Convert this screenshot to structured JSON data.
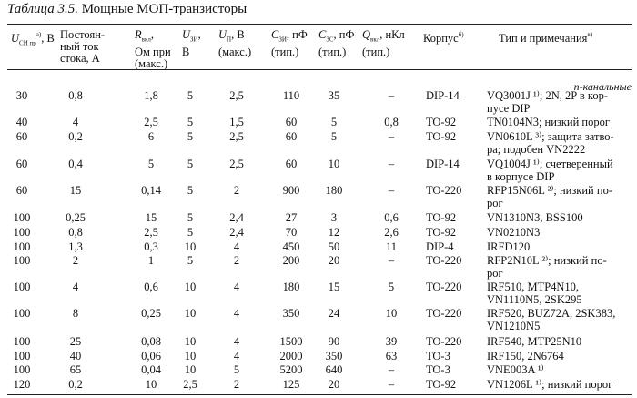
{
  "title": {
    "label": "Таблица 3.5.",
    "text": "Мощные МОП-транзисторы"
  },
  "headers": {
    "vds": {
      "sym": "U",
      "sub": "СИ пр",
      "sup": "а)",
      "unit": ", В"
    },
    "id": "Постоян-\nный ток\nстока, А",
    "ron": {
      "sym": "R",
      "sub": "вкл",
      "unit": ",",
      "rest": "Ом при\n(макс.)"
    },
    "vgs_on": {
      "sym": "U",
      "sub": "ЗИ",
      "unit": ",",
      "rest": "В"
    },
    "vth": {
      "sym": "U",
      "sub": "П",
      "unit": ", В",
      "rest": "(макс.)"
    },
    "ciss": {
      "sym": "C",
      "sub": "ЗИ",
      "unit": ", пФ",
      "rest": "(тип.)"
    },
    "crss": {
      "sym": "C",
      "sub": "ЗС",
      "unit": ", пФ",
      "rest": "(тип.)"
    },
    "qg": {
      "sym": "Q",
      "sub": "вкл",
      "unit": ", нКл",
      "rest": "(тип.)"
    },
    "pkg": {
      "text": "Корпус",
      "sup": "б)"
    },
    "type": {
      "text": "Тип и примечания",
      "sup": "в)"
    }
  },
  "section": "n-канальные",
  "rows": [
    {
      "vds": "30",
      "id": "0,8",
      "ron": "1,8",
      "vgs": "5",
      "vth": "2,5",
      "ciss": "110",
      "crss": "35",
      "qg": "–",
      "pkg": "DIP-14",
      "note": "VQ3001J ¹⁾; 2N, 2P в кор-\nпусе DIP"
    },
    {
      "vds": "40",
      "id": "4",
      "ron": "2,5",
      "vgs": "5",
      "vth": "1,5",
      "ciss": "60",
      "crss": "5",
      "qg": "0,8",
      "pkg": "TO-92",
      "note": "TN0104N3; низкий порог"
    },
    {
      "vds": "60",
      "id": "0,2",
      "ron": "6",
      "vgs": "5",
      "vth": "2,5",
      "ciss": "60",
      "crss": "5",
      "qg": "–",
      "pkg": "TO-92",
      "note": "VN0610L ³⁾; защита затво-\nра; подобен VN2222"
    },
    {
      "vds": "60",
      "id": "0,4",
      "ron": "5",
      "vgs": "5",
      "vth": "2,5",
      "ciss": "60",
      "crss": "10",
      "qg": "–",
      "pkg": "DIP-14",
      "note": "VQ1004J ¹⁾; счетверенный\nв корпусе DIP"
    },
    {
      "vds": "60",
      "id": "15",
      "ron": "0,14",
      "vgs": "5",
      "vth": "2",
      "ciss": "900",
      "crss": "180",
      "qg": "–",
      "pkg": "TO-220",
      "note": "RFP15N06L ²⁾; низкий по-\nрог"
    },
    {
      "vds": "100",
      "id": "0,25",
      "ron": "15",
      "vgs": "5",
      "vth": "2,4",
      "ciss": "27",
      "crss": "3",
      "qg": "0,6",
      "pkg": "TO-92",
      "note": "VN1310N3, BSS100"
    },
    {
      "vds": "100",
      "id": "0,8",
      "ron": "2,5",
      "vgs": "5",
      "vth": "2,4",
      "ciss": "70",
      "crss": "12",
      "qg": "2,6",
      "pkg": "TO-92",
      "note": "VN0210N3"
    },
    {
      "vds": "100",
      "id": "1,3",
      "ron": "0,3",
      "vgs": "10",
      "vth": "4",
      "ciss": "450",
      "crss": "50",
      "qg": "11",
      "pkg": "DIP-4",
      "note": "IRFD120"
    },
    {
      "vds": "100",
      "id": "2",
      "ron": "1",
      "vgs": "5",
      "vth": "2",
      "ciss": "200",
      "crss": "20",
      "qg": "–",
      "pkg": "TO-220",
      "note": "RFP2N10L ²⁾; низкий по-\nрог"
    },
    {
      "vds": "100",
      "id": "4",
      "ron": "0,6",
      "vgs": "10",
      "vth": "4",
      "ciss": "180",
      "crss": "15",
      "qg": "5",
      "pkg": "TO-220",
      "note": "IRF510, MTP4N10,\nVN1110N5, 2SK295"
    },
    {
      "vds": "100",
      "id": "8",
      "ron": "0,25",
      "vgs": "10",
      "vth": "4",
      "ciss": "350",
      "crss": "24",
      "qg": "10",
      "pkg": "TO-220",
      "note": "IRF520, BUZ72A, 2SK383,\nVN1210N5"
    },
    {
      "vds": "100",
      "id": "25",
      "ron": "0,08",
      "vgs": "10",
      "vth": "4",
      "ciss": "1500",
      "crss": "90",
      "qg": "39",
      "pkg": "TO-220",
      "note": "IRF540, MTP25N10"
    },
    {
      "vds": "100",
      "id": "40",
      "ron": "0,06",
      "vgs": "10",
      "vth": "4",
      "ciss": "2000",
      "crss": "350",
      "qg": "63",
      "pkg": "TO-3",
      "note": "IRF150, 2N6764"
    },
    {
      "vds": "100",
      "id": "65",
      "ron": "0,04",
      "vgs": "10",
      "vth": "5",
      "ciss": "5200",
      "crss": "640",
      "qg": "–",
      "pkg": "TO-3",
      "note": "VNE003A ¹⁾"
    },
    {
      "vds": "120",
      "id": "0,2",
      "ron": "10",
      "vgs": "2,5",
      "vth": "2",
      "ciss": "125",
      "crss": "20",
      "qg": "–",
      "pkg": "TO-92",
      "note": "VN1206L ¹⁾; низкий порог"
    }
  ]
}
